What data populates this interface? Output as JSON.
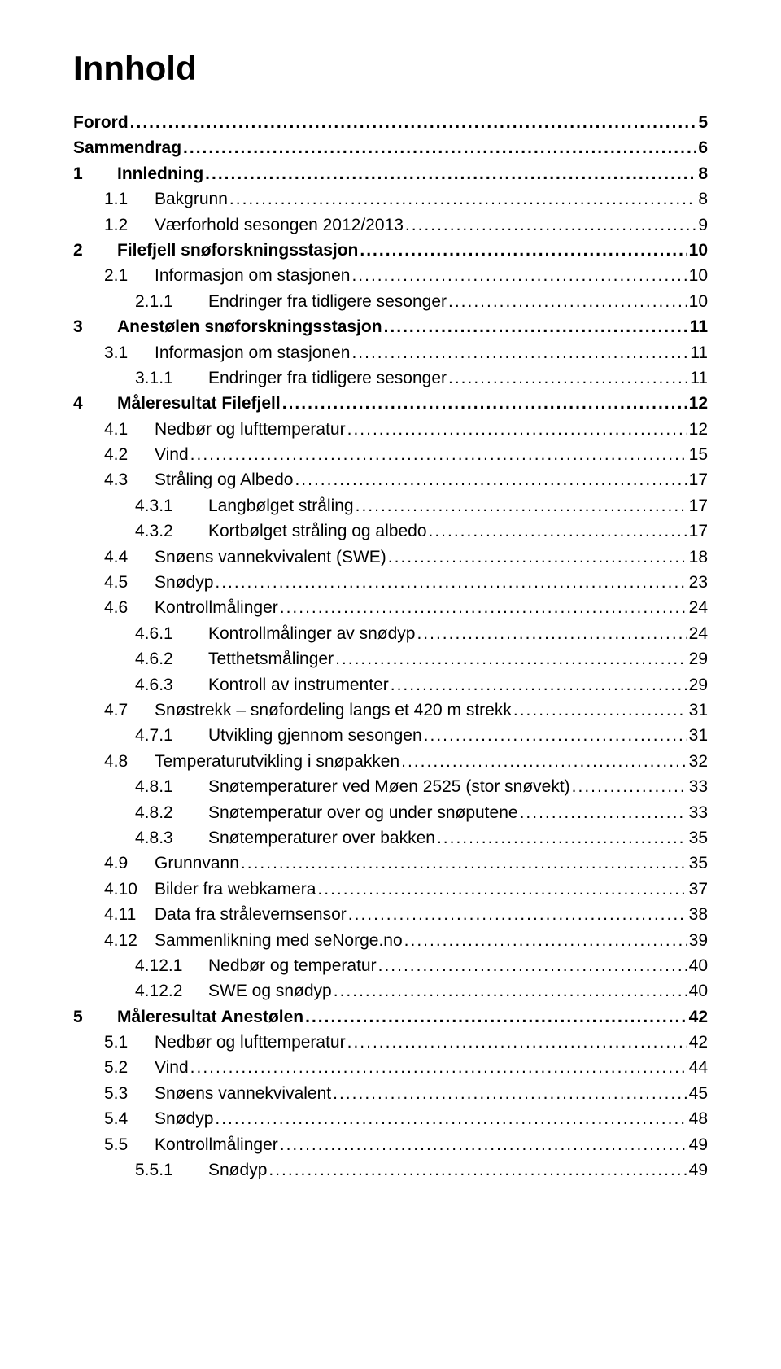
{
  "title": "Innhold",
  "font": {
    "title_size_pt": 32,
    "body_size_pt": 16,
    "family": "Arial"
  },
  "colors": {
    "text": "#000000",
    "background": "#ffffff"
  },
  "toc": [
    {
      "level": 0,
      "bold": true,
      "num": "",
      "label": "Forord",
      "page": "5"
    },
    {
      "level": 0,
      "bold": true,
      "num": "",
      "label": "Sammendrag",
      "page": "6"
    },
    {
      "level": 0,
      "bold": true,
      "num": "1",
      "label": "Innledning",
      "page": "8"
    },
    {
      "level": 1,
      "bold": false,
      "num": "1.1",
      "label": "Bakgrunn",
      "page": "8"
    },
    {
      "level": 1,
      "bold": false,
      "num": "1.2",
      "label": "Værforhold sesongen 2012/2013",
      "page": "9"
    },
    {
      "level": 0,
      "bold": true,
      "num": "2",
      "label": "Filefjell snøforskningsstasjon",
      "page": "10"
    },
    {
      "level": 1,
      "bold": false,
      "num": "2.1",
      "label": "Informasjon om stasjonen",
      "page": "10"
    },
    {
      "level": 2,
      "bold": false,
      "num": "2.1.1",
      "label": "Endringer fra tidligere sesonger",
      "page": "10"
    },
    {
      "level": 0,
      "bold": true,
      "num": "3",
      "label": "Anestølen snøforskningsstasjon",
      "page": "11"
    },
    {
      "level": 1,
      "bold": false,
      "num": "3.1",
      "label": "Informasjon om stasjonen",
      "page": "11"
    },
    {
      "level": 2,
      "bold": false,
      "num": "3.1.1",
      "label": "Endringer fra tidligere sesonger",
      "page": "11"
    },
    {
      "level": 0,
      "bold": true,
      "num": "4",
      "label": "Måleresultat Filefjell",
      "page": "12"
    },
    {
      "level": 1,
      "bold": false,
      "num": "4.1",
      "label": "Nedbør og lufttemperatur",
      "page": "12"
    },
    {
      "level": 1,
      "bold": false,
      "num": "4.2",
      "label": "Vind",
      "page": "15"
    },
    {
      "level": 1,
      "bold": false,
      "num": "4.3",
      "label": "Stråling og Albedo",
      "page": "17"
    },
    {
      "level": 2,
      "bold": false,
      "num": "4.3.1",
      "label": "Langbølget stråling",
      "page": "17"
    },
    {
      "level": 2,
      "bold": false,
      "num": "4.3.2",
      "label": "Kortbølget stråling og albedo",
      "page": "17"
    },
    {
      "level": 1,
      "bold": false,
      "num": "4.4",
      "label": "Snøens vannekvivalent (SWE)",
      "page": "18"
    },
    {
      "level": 1,
      "bold": false,
      "num": "4.5",
      "label": "Snødyp",
      "page": "23"
    },
    {
      "level": 1,
      "bold": false,
      "num": "4.6",
      "label": "Kontrollmålinger",
      "page": "24"
    },
    {
      "level": 2,
      "bold": false,
      "num": "4.6.1",
      "label": "Kontrollmålinger av snødyp",
      "page": "24"
    },
    {
      "level": 2,
      "bold": false,
      "num": "4.6.2",
      "label": "Tetthetsmålinger",
      "page": "29"
    },
    {
      "level": 2,
      "bold": false,
      "num": "4.6.3",
      "label": "Kontroll av instrumenter",
      "page": "29"
    },
    {
      "level": 1,
      "bold": false,
      "num": "4.7",
      "label": "Snøstrekk – snøfordeling langs et 420 m strekk",
      "page": "31"
    },
    {
      "level": 2,
      "bold": false,
      "num": "4.7.1",
      "label": "Utvikling gjennom sesongen",
      "page": "31"
    },
    {
      "level": 1,
      "bold": false,
      "num": "4.8",
      "label": "Temperaturutvikling i snøpakken",
      "page": "32"
    },
    {
      "level": 2,
      "bold": false,
      "num": "4.8.1",
      "label": "Snøtemperaturer ved Møen 2525 (stor snøvekt)",
      "page": "33"
    },
    {
      "level": 2,
      "bold": false,
      "num": "4.8.2",
      "label": "Snøtemperatur over og under snøputene",
      "page": "33"
    },
    {
      "level": 2,
      "bold": false,
      "num": "4.8.3",
      "label": "Snøtemperaturer over bakken",
      "page": "35"
    },
    {
      "level": 1,
      "bold": false,
      "num": "4.9",
      "label": "Grunnvann",
      "page": "35"
    },
    {
      "level": 1,
      "bold": false,
      "num": "4.10",
      "label": "Bilder fra webkamera",
      "page": "37"
    },
    {
      "level": 1,
      "bold": false,
      "num": "4.11",
      "label": "Data fra strålevernsensor",
      "page": "38"
    },
    {
      "level": 1,
      "bold": false,
      "num": "4.12",
      "label": "Sammenlikning med seNorge.no",
      "page": "39"
    },
    {
      "level": 2,
      "bold": false,
      "num": "4.12.1",
      "label": "Nedbør og temperatur",
      "page": "40"
    },
    {
      "level": 2,
      "bold": false,
      "num": "4.12.2",
      "label": "SWE og snødyp",
      "page": "40"
    },
    {
      "level": 0,
      "bold": true,
      "num": "5",
      "label": "Måleresultat Anestølen",
      "page": "42"
    },
    {
      "level": 1,
      "bold": false,
      "num": "5.1",
      "label": "Nedbør og lufttemperatur",
      "page": "42"
    },
    {
      "level": 1,
      "bold": false,
      "num": "5.2",
      "label": "Vind",
      "page": "44"
    },
    {
      "level": 1,
      "bold": false,
      "num": "5.3",
      "label": "Snøens vannekvivalent",
      "page": "45"
    },
    {
      "level": 1,
      "bold": false,
      "num": "5.4",
      "label": "Snødyp",
      "page": "48"
    },
    {
      "level": 1,
      "bold": false,
      "num": "5.5",
      "label": "Kontrollmålinger",
      "page": "49"
    },
    {
      "level": 2,
      "bold": false,
      "num": "5.5.1",
      "label": "Snødyp",
      "page": "49"
    }
  ]
}
